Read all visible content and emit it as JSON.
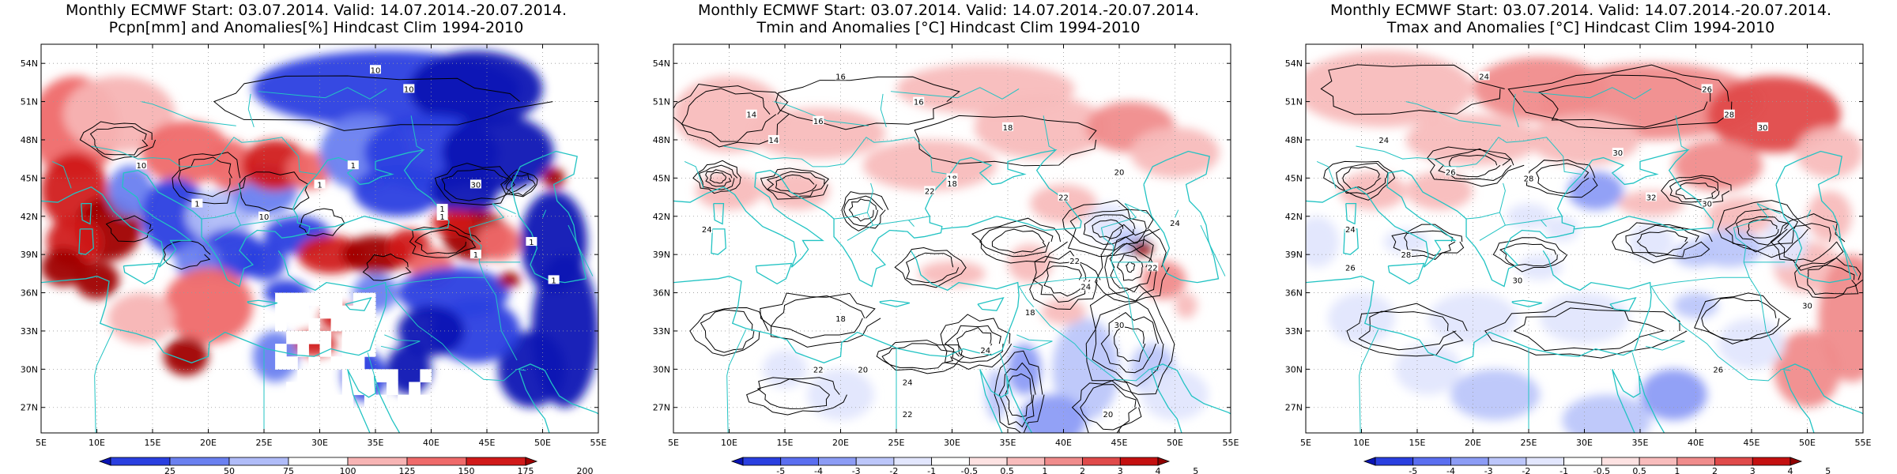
{
  "panels": [
    {
      "title_line1": "Monthly ECMWF Start: 03.07.2014. Valid: 14.07.2014.-20.07.2014.",
      "title_line2": "Pcpn[mm] and Anomalies[%] Hindcast Clim 1994-2010",
      "colorbar_ticks": [
        "25",
        "50",
        "75",
        "100",
        "125",
        "150",
        "175",
        "200"
      ],
      "colorbar_colors": [
        "#0a14b4",
        "#2a3fe0",
        "#6a80f0",
        "#b0bcf8",
        "#ffffff",
        "#f7b4b4",
        "#ef6a6a",
        "#d11a1a",
        "#a00000"
      ],
      "contour_labels": [
        "10",
        "10",
        "1",
        "1",
        "10",
        "1",
        "1",
        "10",
        "30",
        "1",
        "1",
        "1",
        "1"
      ]
    },
    {
      "title_line1": "Monthly ECMWF Start: 03.07.2014. Valid: 14.07.2014.-20.07.2014.",
      "title_line2": "Tmin and Anomalies [°C] Hindcast Clim 1994-2010",
      "colorbar_ticks": [
        "-5",
        "-4",
        "-3",
        "-2",
        "-1",
        "-0.5",
        "0.5",
        "1",
        "2",
        "3",
        "4",
        "5"
      ],
      "colorbar_colors": [
        "#0a14b4",
        "#2a3fe0",
        "#5a6ef0",
        "#8c9cf5",
        "#bcc6fa",
        "#e2e6fd",
        "#ffffff",
        "#fde2e2",
        "#f8bcbc",
        "#f08c8c",
        "#e04a4a",
        "#c41010",
        "#900000"
      ],
      "contour_labels": [
        "16",
        "14",
        "16",
        "16",
        "18",
        "14",
        "18",
        "22",
        "20",
        "22",
        "18",
        "24",
        "24",
        "22",
        "22",
        "24",
        "18",
        "20",
        "22",
        "24",
        "30",
        "18",
        "24",
        "22",
        "20"
      ]
    },
    {
      "title_line1": "Monthly ECMWF Start: 03.07.2014. Valid: 14.07.2014.-20.07.2014.",
      "title_line2": "Tmax and Anomalies [°C] Hindcast Clim 1994-2010",
      "colorbar_ticks": [
        "-5",
        "-4",
        "-3",
        "-2",
        "-1",
        "-0.5",
        "0.5",
        "1",
        "2",
        "3",
        "4",
        "5"
      ],
      "colorbar_colors": [
        "#0a14b4",
        "#2a3fe0",
        "#5a6ef0",
        "#8c9cf5",
        "#bcc6fa",
        "#e2e6fd",
        "#ffffff",
        "#fde2e2",
        "#f8bcbc",
        "#f08c8c",
        "#e04a4a",
        "#c41010",
        "#900000"
      ],
      "contour_labels": [
        "24",
        "26",
        "28",
        "30",
        "24",
        "26",
        "28",
        "30",
        "32",
        "30",
        "24",
        "26",
        "28",
        "30",
        "26",
        "30"
      ]
    }
  ],
  "lat_labels": [
    "54N",
    "51N",
    "48N",
    "45N",
    "42N",
    "39N",
    "36N",
    "33N",
    "30N",
    "27N"
  ],
  "lon_labels": [
    "5E",
    "10E",
    "15E",
    "20E",
    "25E",
    "30E",
    "35E",
    "40E",
    "45E",
    "50E",
    "55E"
  ],
  "map": {
    "coast_color": "#22c3c3",
    "border_color": "#22c3c3",
    "grid_color": "#999999",
    "contour_color": "#000000"
  }
}
